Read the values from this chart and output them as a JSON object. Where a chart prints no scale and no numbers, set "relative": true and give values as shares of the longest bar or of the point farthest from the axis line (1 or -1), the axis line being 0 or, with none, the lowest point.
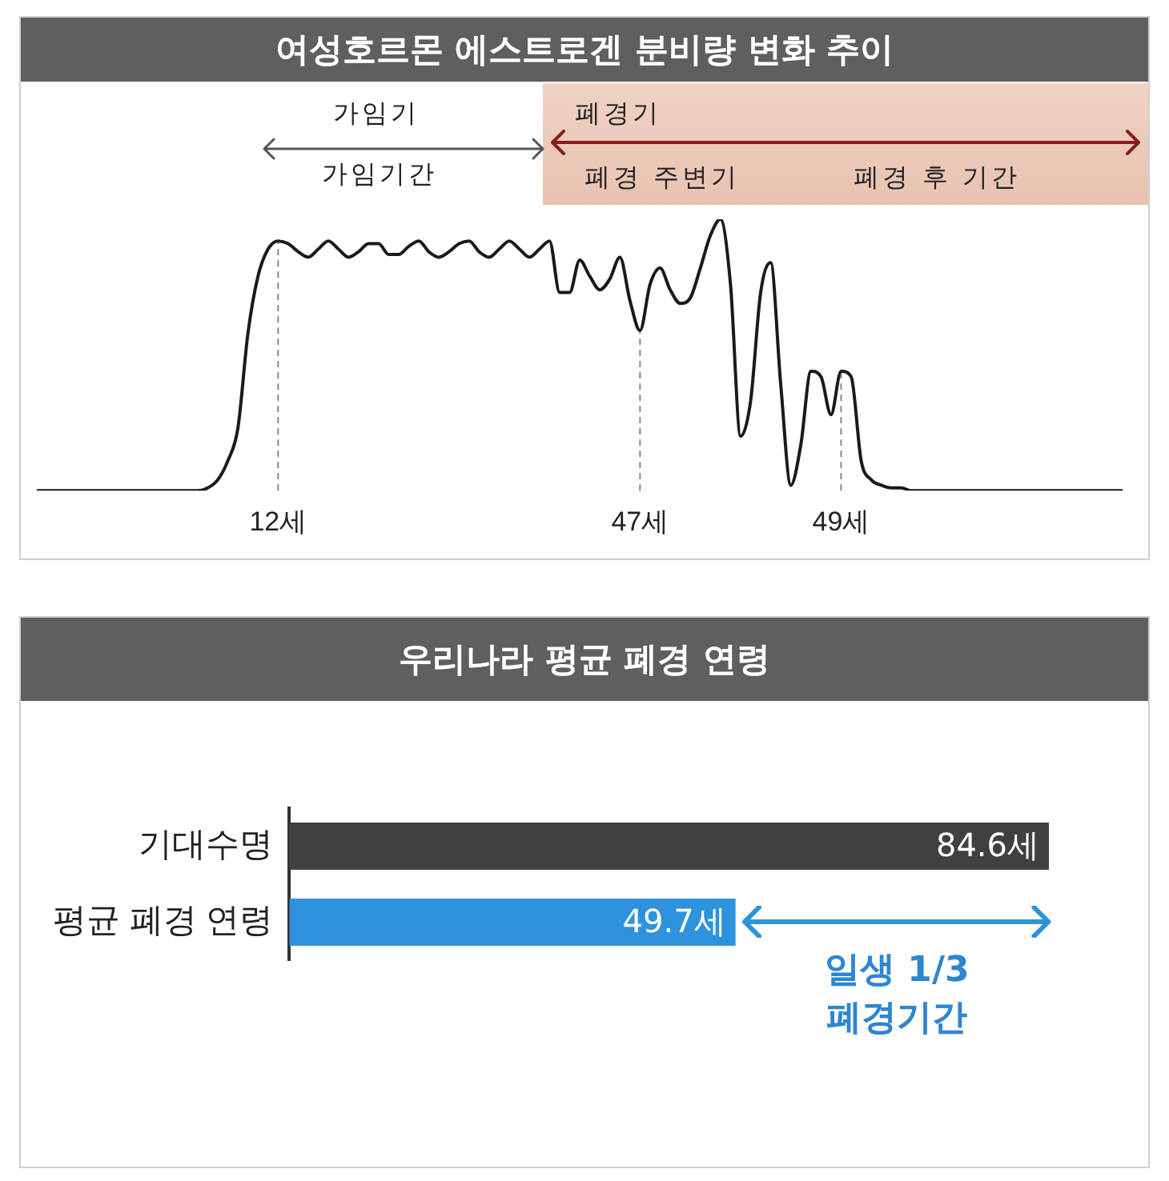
{
  "chart_data": [
    {
      "type": "line",
      "title": "여성호르몬 에스트로겐 분비량 변화 추이",
      "relative": true,
      "tick_labels": "x",
      "legend": false,
      "grid": false,
      "marker": "none",
      "color": "#1a1a1a",
      "categories": [
        null,
        null,
        null,
        null,
        null,
        null,
        null,
        null,
        null,
        null,
        null,
        null,
        null,
        null,
        null,
        null,
        null,
        null,
        null,
        null,
        null,
        null,
        null,
        null,
        "12세",
        null,
        null,
        null,
        null,
        null,
        null,
        null,
        null,
        null,
        null,
        null,
        null,
        null,
        null,
        null,
        null,
        null,
        null,
        null,
        null,
        null,
        null,
        null,
        null,
        null,
        null,
        null,
        null,
        null,
        null,
        null,
        null,
        null,
        null,
        null,
        "47세",
        null,
        null,
        null,
        null,
        null,
        null,
        null,
        null,
        null,
        null,
        null,
        null,
        null,
        null,
        null,
        null,
        null,
        null,
        null,
        "49세",
        null,
        null,
        null,
        null,
        null,
        null,
        null,
        null,
        null,
        null,
        null,
        null,
        null,
        null,
        null,
        null,
        null,
        null,
        null,
        null,
        null,
        null,
        null,
        null,
        null,
        null,
        null,
        null
      ],
      "values": [
        0,
        0,
        0,
        0,
        0,
        0,
        0,
        0,
        0,
        0,
        0,
        0,
        0,
        0,
        0,
        0,
        0,
        0.01,
        0.04,
        0.11,
        0.23,
        0.58,
        0.79,
        0.89,
        0.92,
        0.91,
        0.88,
        0.86,
        0.89,
        0.92,
        0.89,
        0.86,
        0.88,
        0.91,
        0.91,
        0.87,
        0.87,
        0.9,
        0.92,
        0.88,
        0.86,
        0.88,
        0.91,
        0.92,
        0.88,
        0.86,
        0.89,
        0.92,
        0.89,
        0.86,
        0.89,
        0.92,
        0.73,
        0.73,
        0.85,
        0.79,
        0.74,
        0.78,
        0.86,
        0.7,
        0.59,
        0.76,
        0.82,
        0.74,
        0.69,
        0.71,
        0.82,
        0.94,
        1,
        0.76,
        0.2,
        0.33,
        0.73,
        0.84,
        0.39,
        0.02,
        0.17,
        0.44,
        0.42,
        0.28,
        0.44,
        0.42,
        0.11,
        0.04,
        0.02,
        0.01,
        0.01,
        0,
        0,
        0,
        0,
        0,
        0,
        0,
        0,
        0,
        0,
        0,
        0,
        0,
        0,
        0,
        0,
        0,
        0,
        0,
        0,
        0,
        0
      ],
      "ref_lines": [
        {
          "axis": "x",
          "value": "12세",
          "line_style": "dashed",
          "color": "#888888"
        },
        {
          "axis": "x",
          "value": "47세",
          "line_style": "dashed",
          "color": "#888888"
        },
        {
          "axis": "x",
          "value": "49세",
          "line_style": "dashed",
          "color": "#888888"
        }
      ],
      "annotations": [
        "가임기",
        "가임기간",
        "폐경기",
        "폐경 주변기",
        "폐경 후 기간"
      ]
    },
    {
      "type": "bar",
      "orientation": "horizontal",
      "title": "우리나라 평균 폐경 연령",
      "tick_labels": "y",
      "legend": false,
      "grid": false,
      "categories": [
        "기대수명",
        "평균 폐경 연령"
      ],
      "values": [
        84.6,
        49.7
      ],
      "colors": [
        "#404040",
        "#2e93dc"
      ],
      "value_labels": [
        "84.6세",
        "49.7세"
      ],
      "annotations": [
        "일생 1/3\n폐경기간"
      ]
    }
  ]
}
